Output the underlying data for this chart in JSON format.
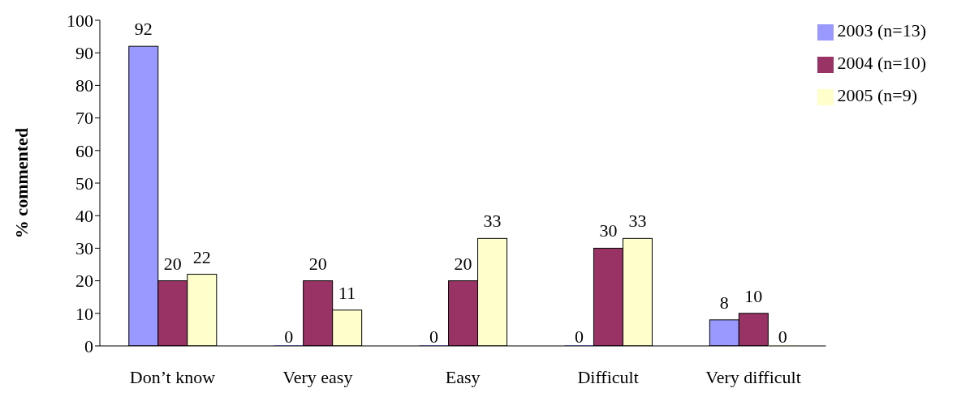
{
  "chart_data": {
    "type": "bar",
    "ylabel": "% commented",
    "categories": [
      "Don’t know",
      "Very easy",
      "Easy",
      "Difficult",
      "Very difficult"
    ],
    "series": [
      {
        "name": "2003 (n=13)",
        "color": "#9999ff",
        "values": [
          92,
          0,
          0,
          0,
          8
        ]
      },
      {
        "name": "2004 (n=10)",
        "color": "#993366",
        "values": [
          20,
          20,
          20,
          30,
          10
        ]
      },
      {
        "name": "2005 (n=9)",
        "color": "#ffffcc",
        "values": [
          22,
          11,
          33,
          33,
          0
        ]
      }
    ],
    "ylim": [
      0,
      100
    ],
    "yticks": [
      0,
      10,
      20,
      30,
      40,
      50,
      60,
      70,
      80,
      90,
      100
    ],
    "grid": false,
    "legend": "top right",
    "data_labels": true
  }
}
